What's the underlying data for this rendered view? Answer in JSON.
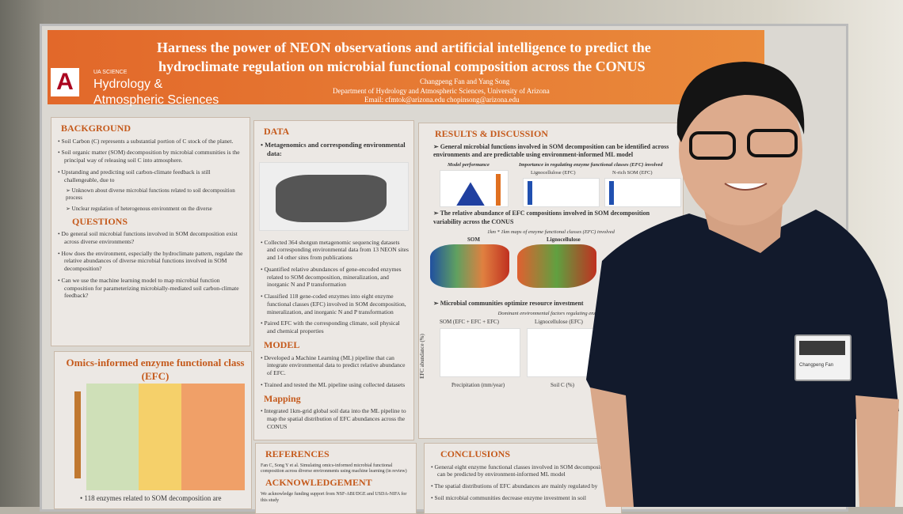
{
  "header": {
    "title_line1": "Harness the power of NEON observations and artificial intelligence to predict the",
    "title_line2": "hydroclimate regulation on microbial functional composition across the CONUS",
    "authors": "Changpeng Fan and Yang Song",
    "affiliation": "Department of Hydrology and Atmospheric Sciences, University of Arizona",
    "email": "Email: cfmtok@arizona.edu chopinsong@arizona.edu",
    "logo_small": "UA SCIENCE",
    "logo_line1": "Hydrology &",
    "logo_line2": "Atmospheric Sciences"
  },
  "background": {
    "heading": "BACKGROUND",
    "bullets": [
      "Soil Carbon (C) represents a substantial portion of C stock of the planet.",
      "Soil organic matter (SOM) decomposition by microbial communities is the principal way of releasing soil C into atmosphere.",
      "Upstanding and predicting soil carbon-climate feedback is still challengeable, due to"
    ],
    "subs": [
      "Unknown about diverse microbial functions related to soil decomposition process",
      "Unclear regulation of heterogenous environment on the diverse"
    ]
  },
  "questions": {
    "heading": "QUESTIONS",
    "bullets": [
      "Do general soil microbial functions involved in SOM decomposition exist across diverse environments?",
      "How does the environment, especially the hydroclimate pattern, regulate the relative abundances of diverse microbial functions involved in SOM decomposition?",
      "Can we use the machine learning model to map microbial function composition for parameterizing microbially-mediated soil carbon-climate feedback?"
    ]
  },
  "omics": {
    "heading": "Omics-informed enzyme functional class (EFC)",
    "footer": "118 enzymes related to SOM decomposition are"
  },
  "data": {
    "heading": "DATA",
    "subheading": "Metagenomics and corresponding environmental data:",
    "bullets": [
      "Collected 364 shotgun metagenomic sequencing datasets and corresponding environmental data from 13 NEON sites and 14 other sites from publications",
      "Quantified relative abundances of gene-encoded enzymes related to SOM decomposition, mineralization, and inorganic N and P transformation",
      "Classified 118 gene-coded enzymes into eight enzyme functional classes (EFC) involved in SOM decomposition, mineralization, and inorganic N and P transformation",
      "Paired EFC with the corresponding climate, soil physical and chemical properties"
    ]
  },
  "model": {
    "heading": "MODEL",
    "bullets": [
      "Developed a Machine Learning (ML) pipeline that can integrate environmental data to predict relative abundance of EFC.",
      "Trained and tested the ML pipeline using collected datasets"
    ]
  },
  "mapping": {
    "heading": "Mapping",
    "bullets": [
      "Integrated 1km-grid global soil data into the ML pipeline to map the spatial distribution of EFC abundances across the CONUS"
    ]
  },
  "references": {
    "heading": "REFERENCES",
    "text": "Fan C, Song Y et al. Simulating omics-informed microbial functional composition across diverse environments using machine learning (in review)"
  },
  "acknowledgement": {
    "heading": "ACKNOWLEDGEMENT",
    "text": "We acknowledge funding support from NSF-ABI/DGE and USDA-NIFA for this study"
  },
  "results": {
    "heading": "RESULTS & DISCUSSION",
    "point1": "General microbial functions involved in SOM decomposition can be identified across environments and are predictable using environment-informed ML model",
    "fig_model": "Model performance",
    "fig_importance": "Importance in regulating enzyme functional classes (EFC) involved",
    "fig_ligno": "Lignocellulose (EFC)",
    "fig_nrich": "N-rich SOM (EFC)",
    "point2": "The relative abundance of EFC compositions involved in SOM decomposition variability across the CONUS",
    "fig_maps": "1km * 1km maps of enzyme functional classes (EFC) involved",
    "map_som": "SOM",
    "map_ligno": "Lignocellulose",
    "point3": "Microbial communities optimize resource investment",
    "fig_factors": "Dominant environmental factors regulating enzyme",
    "box_som": "SOM (EFC + EFC + EFC)",
    "box_ligno": "Lignocellulose (EFC)",
    "x_precip": "Precipitation (mm/year)",
    "x_soilc": "Soil C (%)",
    "y_abund": "EFC abundance (%)"
  },
  "conclusions": {
    "heading": "CONCLUSIONS",
    "bullets": [
      "General eight enzyme functional classes involved in SOM decomposition can be predicted by environment-informed ML model",
      "The spatial distributions of EFC abundances are mainly regulated by",
      "Soil microbial communities decrease enzyme investment in soil"
    ]
  },
  "badge": {
    "name": "Changpeng Fan"
  }
}
